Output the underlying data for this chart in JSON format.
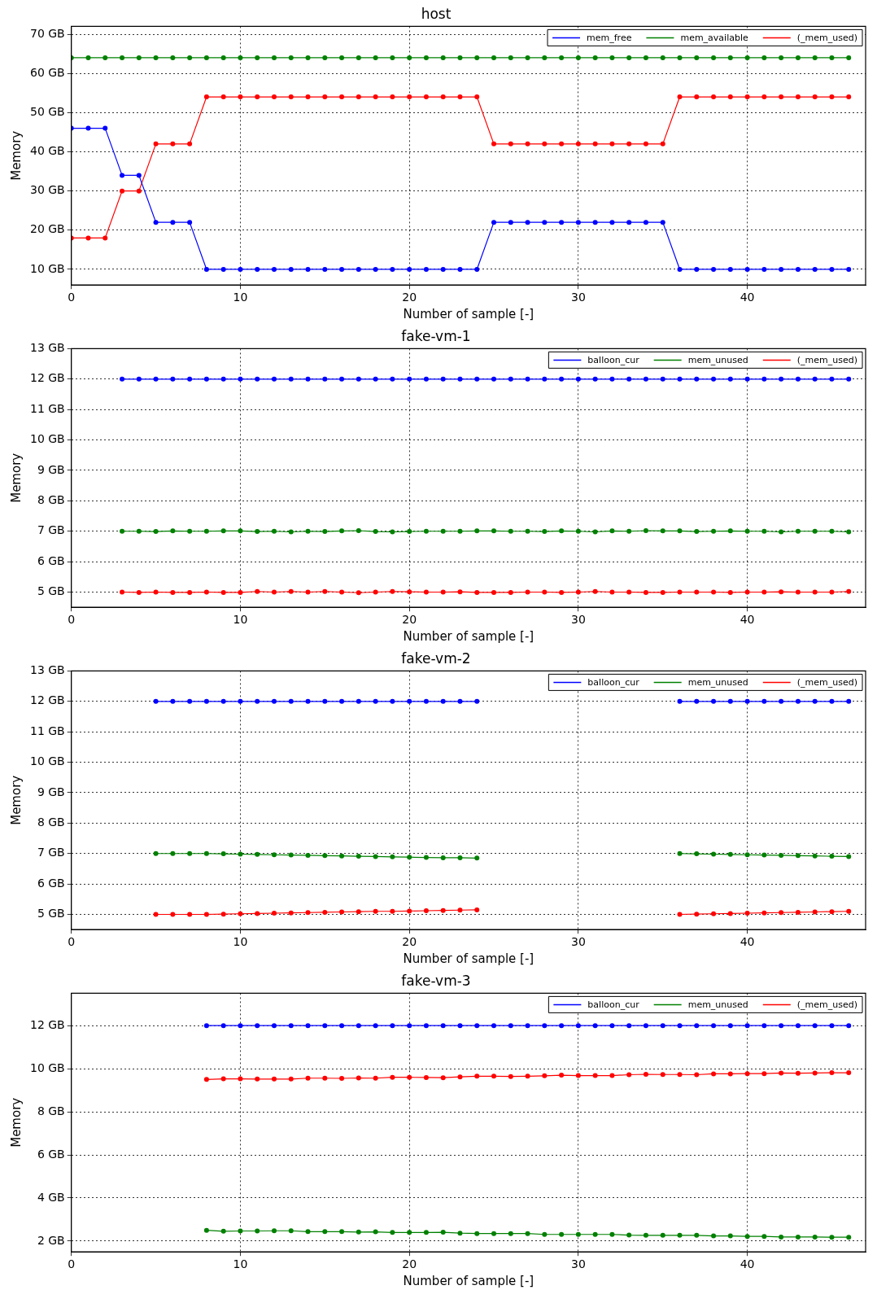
{
  "chart_data": [
    {
      "type": "line",
      "title": "host",
      "xlabel": "Number of sample [-]",
      "ylabel": "Memory",
      "x": [
        0,
        1,
        2,
        3,
        4,
        5,
        6,
        7,
        8,
        9,
        10,
        11,
        12,
        13,
        14,
        15,
        16,
        17,
        18,
        19,
        20,
        21,
        22,
        23,
        24,
        25,
        26,
        27,
        28,
        29,
        30,
        31,
        32,
        33,
        34,
        35,
        36,
        37,
        38,
        39,
        40,
        41,
        42,
        43,
        44,
        45,
        46
      ],
      "series": [
        {
          "name": "mem_free",
          "color": "#0000ff",
          "values": [
            46,
            46,
            46,
            34,
            34,
            22,
            22,
            22,
            10,
            10,
            10,
            10,
            10,
            10,
            10,
            10,
            10,
            10,
            10,
            10,
            10,
            10,
            10,
            10,
            10,
            22,
            22,
            22,
            22,
            22,
            22,
            22,
            22,
            22,
            22,
            22,
            10,
            10,
            10,
            10,
            10,
            10,
            10,
            10,
            10,
            10,
            10
          ]
        },
        {
          "name": "mem_available",
          "color": "#008000",
          "values": [
            64,
            64,
            64,
            64,
            64,
            64,
            64,
            64,
            64,
            64,
            64,
            64,
            64,
            64,
            64,
            64,
            64,
            64,
            64,
            64,
            64,
            64,
            64,
            64,
            64,
            64,
            64,
            64,
            64,
            64,
            64,
            64,
            64,
            64,
            64,
            64,
            64,
            64,
            64,
            64,
            64,
            64,
            64,
            64,
            64,
            64,
            64
          ]
        },
        {
          "name": "(_mem_used)",
          "color": "#ff0000",
          "values": [
            18,
            18,
            18,
            30,
            30,
            42,
            42,
            42,
            54,
            54,
            54,
            54,
            54,
            54,
            54,
            54,
            54,
            54,
            54,
            54,
            54,
            54,
            54,
            54,
            54,
            42,
            42,
            42,
            42,
            42,
            42,
            42,
            42,
            42,
            42,
            42,
            54,
            54,
            54,
            54,
            54,
            54,
            54,
            54,
            54,
            54,
            54
          ]
        }
      ],
      "xlim": [
        0,
        47
      ],
      "xticks": [
        0,
        10,
        20,
        30,
        40
      ],
      "ylim": [
        6,
        72
      ],
      "yticks": [
        {
          "value": 10,
          "label": "10 GB"
        },
        {
          "value": 20,
          "label": "20 GB"
        },
        {
          "value": 30,
          "label": "30 GB"
        },
        {
          "value": 40,
          "label": "40 GB"
        },
        {
          "value": 50,
          "label": "50 GB"
        },
        {
          "value": 60,
          "label": "60 GB"
        },
        {
          "value": 70,
          "label": "70 GB"
        }
      ],
      "grid": true,
      "legend": "top right",
      "marker": "circle",
      "line_style": "solid"
    },
    {
      "type": "line",
      "title": "fake-vm-1",
      "xlabel": "Number of sample [-]",
      "ylabel": "Memory",
      "x": [
        3,
        4,
        5,
        6,
        7,
        8,
        9,
        10,
        11,
        12,
        13,
        14,
        15,
        16,
        17,
        18,
        19,
        20,
        21,
        22,
        23,
        24,
        25,
        26,
        27,
        28,
        29,
        30,
        31,
        32,
        33,
        34,
        35,
        36,
        37,
        38,
        39,
        40,
        41,
        42,
        43,
        44,
        45,
        46
      ],
      "series": [
        {
          "name": "balloon_cur",
          "color": "#0000ff",
          "values": [
            12,
            12,
            12,
            12,
            12,
            12,
            12,
            12,
            12,
            12,
            12,
            12,
            12,
            12,
            12,
            12,
            12,
            12,
            12,
            12,
            12,
            12,
            12,
            12,
            12,
            12,
            12,
            12,
            12,
            12,
            12,
            12,
            12,
            12,
            12,
            12,
            12,
            12,
            12,
            12,
            12,
            12,
            12,
            12
          ]
        },
        {
          "name": "mem_unused",
          "color": "#008000",
          "values": [
            7,
            7,
            6.99,
            7.01,
            7,
            7,
            7.01,
            7.01,
            6.99,
            7,
            6.98,
            7,
            6.99,
            7.01,
            7.02,
            6.99,
            6.98,
            6.99,
            7,
            7,
            7,
            7.01,
            7.01,
            7,
            7,
            6.99,
            7.01,
            7,
            6.98,
            7.01,
            7,
            7.02,
            7.01,
            7.01,
            6.99,
            7,
            7.01,
            7,
            7,
            6.98,
            7,
            7,
            7,
            6.98
          ]
        },
        {
          "name": "(_mem_used)",
          "color": "#ff0000",
          "values": [
            5,
            4.99,
            5,
            4.99,
            4.99,
            5,
            4.99,
            4.99,
            5.02,
            5,
            5.02,
            5,
            5.02,
            5,
            4.98,
            5,
            5.02,
            5.01,
            5,
            5,
            5.01,
            4.99,
            4.99,
            4.99,
            5,
            5,
            4.99,
            5,
            5.02,
            5,
            5,
            4.99,
            4.99,
            5,
            5,
            5,
            4.99,
            5,
            5,
            5.01,
            5,
            5,
            5,
            5.02
          ]
        }
      ],
      "xlim": [
        0,
        47
      ],
      "xticks": [
        0,
        10,
        20,
        30,
        40
      ],
      "ylim": [
        4.5,
        13
      ],
      "yticks": [
        {
          "value": 5,
          "label": "5 GB"
        },
        {
          "value": 6,
          "label": "6 GB"
        },
        {
          "value": 7,
          "label": "7 GB"
        },
        {
          "value": 8,
          "label": "8 GB"
        },
        {
          "value": 9,
          "label": "9 GB"
        },
        {
          "value": 10,
          "label": "10 GB"
        },
        {
          "value": 11,
          "label": "11 GB"
        },
        {
          "value": 12,
          "label": "12 GB"
        },
        {
          "value": 13,
          "label": "13 GB"
        }
      ],
      "grid": true,
      "legend": "top right",
      "marker": "circle",
      "line_style": "solid"
    },
    {
      "type": "line",
      "title": "fake-vm-2",
      "xlabel": "Number of sample [-]",
      "ylabel": "Memory",
      "x": [
        5,
        6,
        7,
        8,
        9,
        10,
        11,
        12,
        13,
        14,
        15,
        16,
        17,
        18,
        19,
        20,
        21,
        22,
        23,
        24,
        25,
        26,
        27,
        28,
        29,
        30,
        31,
        32,
        33,
        34,
        35,
        36,
        37,
        38,
        39,
        40,
        41,
        42,
        43,
        44,
        45,
        46
      ],
      "series": [
        {
          "name": "balloon_cur",
          "color": "#0000ff",
          "values": [
            12,
            12,
            12,
            12,
            12,
            12,
            12,
            12,
            12,
            12,
            12,
            12,
            12,
            12,
            12,
            12,
            12,
            12,
            12,
            12,
            null,
            null,
            null,
            null,
            null,
            null,
            null,
            null,
            null,
            null,
            null,
            12,
            12,
            12,
            12,
            12,
            12,
            12,
            12,
            12,
            12,
            12
          ]
        },
        {
          "name": "mem_unused",
          "color": "#008000",
          "values": [
            7,
            7,
            7,
            7,
            6.99,
            6.98,
            6.97,
            6.96,
            6.95,
            6.94,
            6.93,
            6.92,
            6.91,
            6.9,
            6.89,
            6.88,
            6.87,
            6.86,
            6.86,
            6.85,
            null,
            null,
            null,
            null,
            null,
            null,
            null,
            null,
            null,
            null,
            null,
            7,
            6.99,
            6.98,
            6.97,
            6.96,
            6.95,
            6.94,
            6.93,
            6.92,
            6.91,
            6.9
          ]
        },
        {
          "name": "(_mem_used)",
          "color": "#ff0000",
          "values": [
            5,
            5,
            5,
            5,
            5.01,
            5.02,
            5.03,
            5.04,
            5.05,
            5.06,
            5.07,
            5.08,
            5.09,
            5.1,
            5.1,
            5.11,
            5.12,
            5.13,
            5.14,
            5.15,
            null,
            null,
            null,
            null,
            null,
            null,
            null,
            null,
            null,
            null,
            null,
            5,
            5.01,
            5.02,
            5.03,
            5.04,
            5.05,
            5.06,
            5.07,
            5.08,
            5.09,
            5.1
          ]
        }
      ],
      "xlim": [
        0,
        47
      ],
      "xticks": [
        0,
        10,
        20,
        30,
        40
      ],
      "ylim": [
        4.5,
        13
      ],
      "yticks": [
        {
          "value": 5,
          "label": "5 GB"
        },
        {
          "value": 6,
          "label": "6 GB"
        },
        {
          "value": 7,
          "label": "7 GB"
        },
        {
          "value": 8,
          "label": "8 GB"
        },
        {
          "value": 9,
          "label": "9 GB"
        },
        {
          "value": 10,
          "label": "10 GB"
        },
        {
          "value": 11,
          "label": "11 GB"
        },
        {
          "value": 12,
          "label": "12 GB"
        },
        {
          "value": 13,
          "label": "13 GB"
        }
      ],
      "grid": true,
      "legend": "top right",
      "marker": "circle",
      "line_style": "solid"
    },
    {
      "type": "line",
      "title": "fake-vm-3",
      "xlabel": "Number of sample [-]",
      "ylabel": "Memory",
      "x": [
        8,
        9,
        10,
        11,
        12,
        13,
        14,
        15,
        16,
        17,
        18,
        19,
        20,
        21,
        22,
        23,
        24,
        25,
        26,
        27,
        28,
        29,
        30,
        31,
        32,
        33,
        34,
        35,
        36,
        37,
        38,
        39,
        40,
        41,
        42,
        43,
        44,
        45,
        46
      ],
      "series": [
        {
          "name": "balloon_cur",
          "color": "#0000ff",
          "values": [
            12,
            12,
            12,
            12,
            12,
            12,
            12,
            12,
            12,
            12,
            12,
            12,
            12,
            12,
            12,
            12,
            12,
            12,
            12,
            12,
            12,
            12,
            12,
            12,
            12,
            12,
            12,
            12,
            12,
            12,
            12,
            12,
            12,
            12,
            12,
            12,
            12,
            12,
            12
          ]
        },
        {
          "name": "mem_unused",
          "color": "#008000",
          "values": [
            2.5,
            2.46,
            2.47,
            2.47,
            2.48,
            2.48,
            2.44,
            2.44,
            2.44,
            2.42,
            2.43,
            2.4,
            2.4,
            2.4,
            2.41,
            2.37,
            2.35,
            2.35,
            2.35,
            2.35,
            2.31,
            2.31,
            2.31,
            2.31,
            2.31,
            2.28,
            2.27,
            2.27,
            2.27,
            2.27,
            2.24,
            2.24,
            2.22,
            2.22,
            2.19,
            2.19,
            2.19,
            2.18,
            2.18
          ]
        },
        {
          "name": "(_mem_used)",
          "color": "#ff0000",
          "values": [
            9.5,
            9.53,
            9.53,
            9.52,
            9.52,
            9.52,
            9.56,
            9.56,
            9.55,
            9.57,
            9.56,
            9.6,
            9.6,
            9.59,
            9.58,
            9.62,
            9.65,
            9.65,
            9.64,
            9.65,
            9.67,
            9.7,
            9.68,
            9.68,
            9.68,
            9.72,
            9.74,
            9.73,
            9.73,
            9.72,
            9.76,
            9.76,
            9.77,
            9.77,
            9.8,
            9.79,
            9.8,
            9.81,
            9.81
          ]
        }
      ],
      "xlim": [
        0,
        47
      ],
      "xticks": [
        0,
        10,
        20,
        30,
        40
      ],
      "ylim": [
        1.5,
        13.5
      ],
      "yticks": [
        {
          "value": 2,
          "label": "2 GB"
        },
        {
          "value": 4,
          "label": "4 GB"
        },
        {
          "value": 6,
          "label": "6 GB"
        },
        {
          "value": 8,
          "label": "8 GB"
        },
        {
          "value": 10,
          "label": "10 GB"
        },
        {
          "value": 12,
          "label": "12 GB"
        }
      ],
      "grid": true,
      "legend": "top right",
      "marker": "circle",
      "line_style": "solid"
    }
  ]
}
